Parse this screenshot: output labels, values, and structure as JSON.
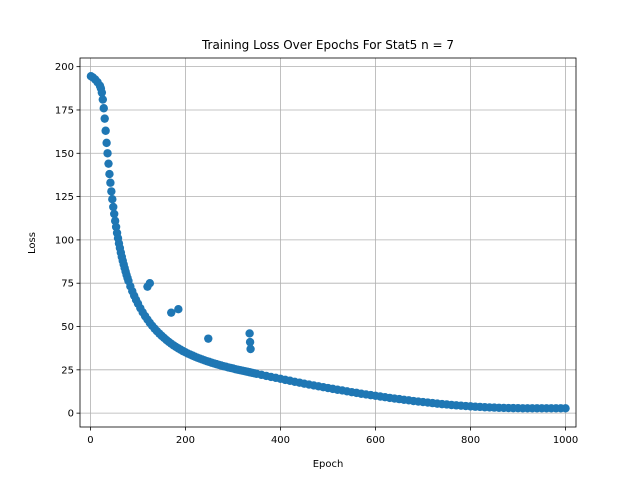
{
  "chart_data": {
    "type": "scatter",
    "title": "Training Loss Over Epochs For Stat5 n = 7",
    "xlabel": "Epoch",
    "ylabel": "Loss",
    "xlim": [
      -22,
      1022
    ],
    "ylim": [
      -8,
      205
    ],
    "xticks": [
      0,
      200,
      400,
      600,
      800,
      1000
    ],
    "yticks": [
      0,
      25,
      50,
      75,
      100,
      125,
      150,
      175,
      200
    ],
    "grid": true,
    "marker_color": "#1f77b4",
    "series": [
      {
        "x": [
          1,
          5,
          10,
          15,
          20,
          22,
          24,
          26,
          28,
          30,
          32,
          34,
          36,
          38,
          40,
          42,
          44,
          46,
          48,
          50,
          52,
          54,
          56,
          58,
          60,
          62,
          64,
          66,
          68,
          70,
          72,
          74,
          76,
          78,
          80,
          84,
          88,
          92,
          96,
          100,
          105,
          110,
          115,
          120,
          125,
          130,
          135,
          140,
          145,
          150,
          155,
          160,
          165,
          170,
          175,
          180,
          185,
          190,
          195,
          200,
          205,
          210,
          215,
          220,
          225,
          230,
          235,
          240,
          245,
          250,
          255,
          260,
          265,
          270,
          275,
          280,
          285,
          290,
          295,
          300,
          305,
          310,
          315,
          320,
          325,
          330,
          335,
          340,
          345,
          350,
          360,
          370,
          380,
          390,
          400,
          410,
          420,
          430,
          440,
          450,
          460,
          470,
          480,
          490,
          500,
          510,
          520,
          530,
          540,
          550,
          560,
          570,
          580,
          590,
          600,
          610,
          620,
          630,
          640,
          650,
          660,
          670,
          680,
          690,
          700,
          710,
          720,
          730,
          740,
          750,
          760,
          770,
          780,
          790,
          800,
          810,
          820,
          830,
          840,
          850,
          860,
          870,
          880,
          890,
          900,
          910,
          920,
          930,
          940,
          950,
          960,
          970,
          980,
          990,
          1000,
          120,
          125,
          170,
          185,
          248,
          335,
          336,
          337
        ],
        "y": [
          194.5,
          193.8,
          192.6,
          191,
          189,
          187.5,
          185,
          181,
          176,
          170,
          163,
          156,
          150,
          144,
          138,
          133,
          128,
          123.5,
          119,
          115,
          111,
          107.5,
          104,
          101,
          98,
          95.3,
          92.7,
          90.2,
          88,
          85.8,
          83.7,
          81.7,
          79.8,
          78,
          76.3,
          73.2,
          70.4,
          67.8,
          65.4,
          63.2,
          60.6,
          58.2,
          56,
          54,
          52.1,
          50.4,
          48.8,
          47.3,
          45.9,
          44.6,
          43.4,
          42.2,
          41.1,
          40.1,
          39.1,
          38.2,
          37.4,
          36.6,
          35.8,
          35.1,
          34.4,
          33.8,
          33.2,
          32.6,
          32,
          31.5,
          31,
          30.5,
          30,
          29.6,
          29.1,
          28.7,
          28.3,
          27.9,
          27.5,
          27.1,
          26.8,
          26.4,
          26.1,
          25.8,
          25.4,
          25.1,
          24.8,
          24.5,
          24.2,
          23.9,
          23.6,
          23.3,
          23,
          22.7,
          22.1,
          21.5,
          20.9,
          20.4,
          19.8,
          19.2,
          18.7,
          18.1,
          17.6,
          17,
          16.5,
          16,
          15.5,
          15,
          14.5,
          14,
          13.5,
          13.1,
          12.6,
          12.1,
          11.7,
          11.2,
          10.8,
          10.4,
          10,
          9.6,
          9.2,
          8.8,
          8.4,
          8.1,
          7.7,
          7.4,
          7,
          6.7,
          6.4,
          6.1,
          5.8,
          5.5,
          5.2,
          5,
          4.7,
          4.5,
          4.3,
          4.1,
          3.9,
          3.7,
          3.6,
          3.4,
          3.3,
          3.2,
          3.1,
          3,
          2.95,
          2.9,
          2.85,
          2.8,
          2.8,
          2.8,
          2.8,
          2.8,
          2.8,
          2.8,
          2.8,
          2.8,
          2.8,
          73,
          75,
          58,
          60,
          43,
          46,
          41,
          37
        ]
      }
    ]
  }
}
